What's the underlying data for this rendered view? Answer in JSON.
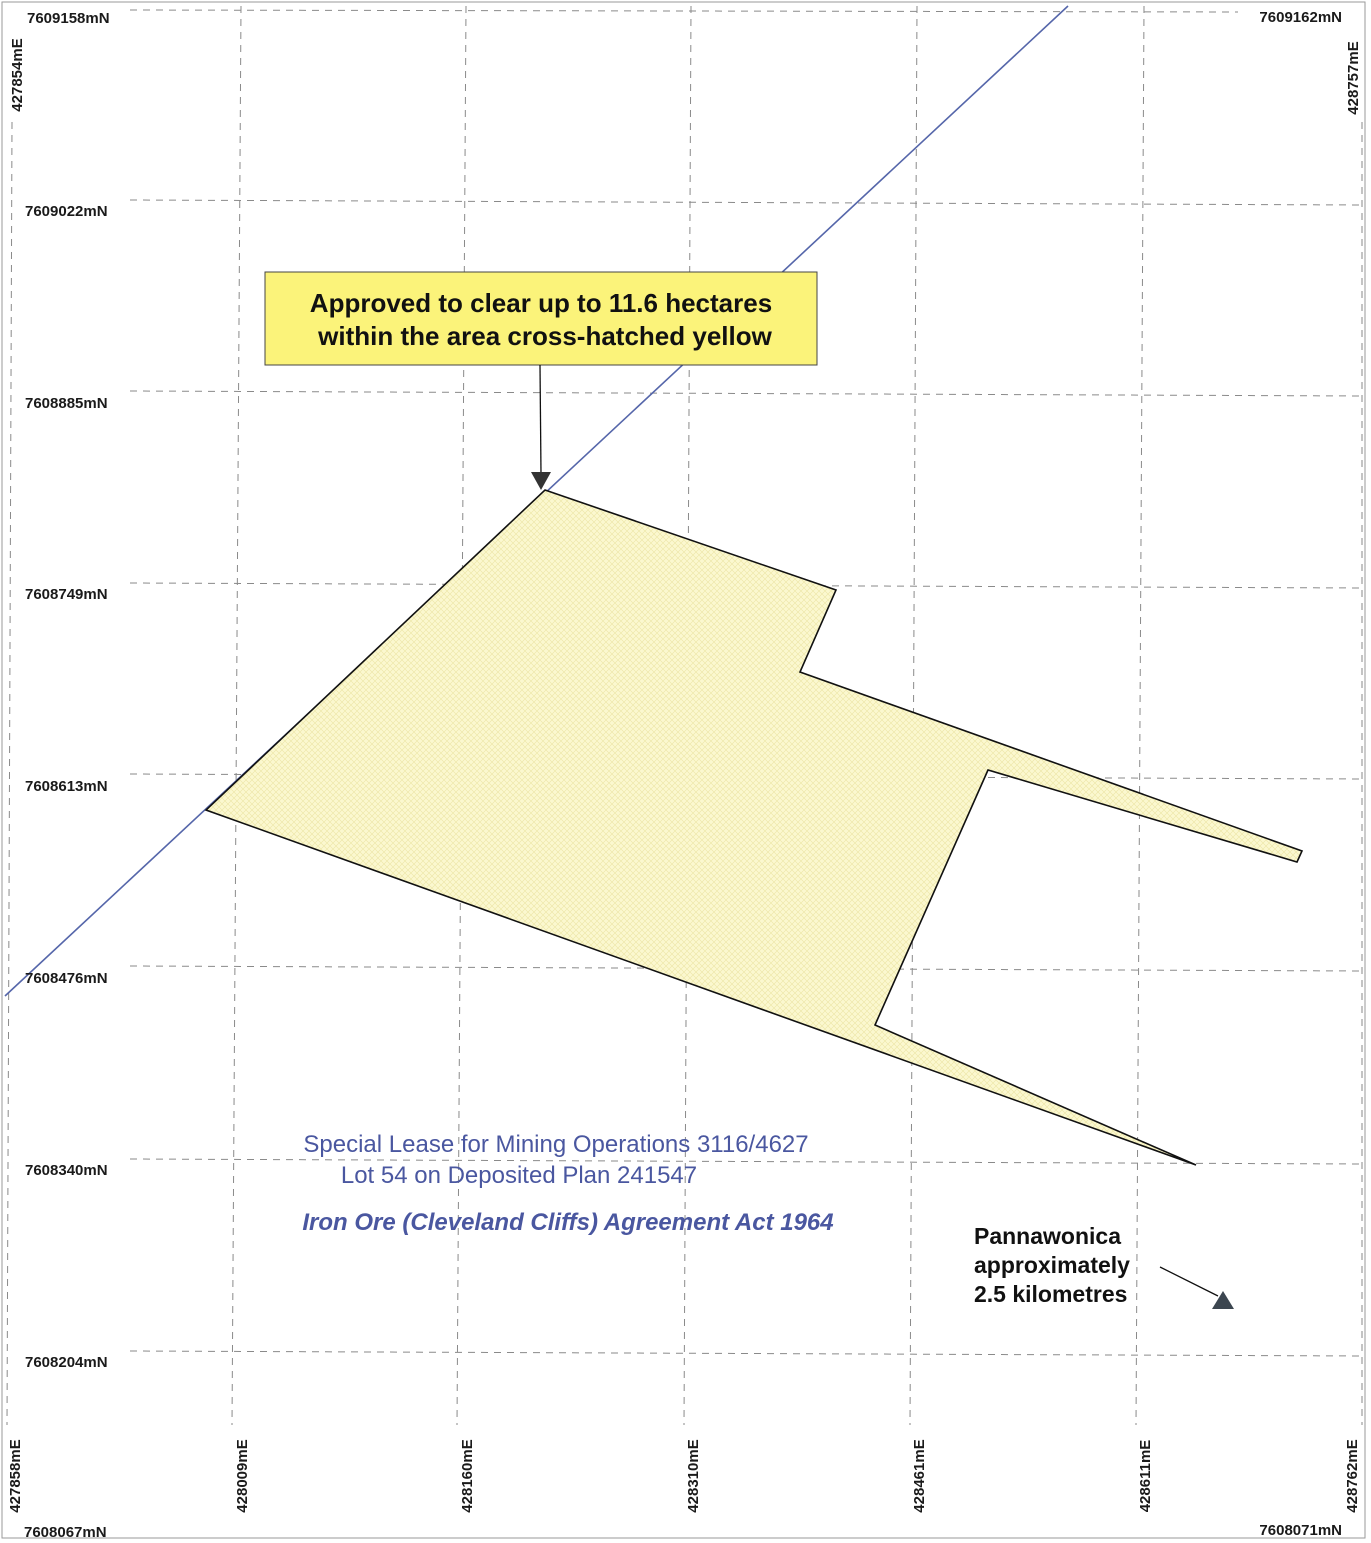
{
  "map": {
    "colors": {
      "grid": "#8a8a8a",
      "boundary": "#5566aa",
      "clearing_fill": "#fbf8cf",
      "clearing_outline": "#111111",
      "callout_fill": "#fbf37a",
      "lease_text": "#4a57a0"
    },
    "callout": {
      "lines": [
        "Approved to clear up to 11.6 hectares",
        "within the area cross-hatched yellow"
      ]
    },
    "lease": {
      "line1": "Special Lease for Mining Operations 3116/4627",
      "line2": "Lot 54 on Deposited Plan 241547",
      "act": "Iron Ore (Cleveland Cliffs) Agreement Act 1964"
    },
    "pannawonica": {
      "lines": [
        "Pannawonica",
        "approximately",
        "2.5 kilometres"
      ],
      "marker_icon": "triangle-marker-icon"
    },
    "corners": {
      "top_left_n": "7609158mN",
      "top_right_n": "7609162mN",
      "bottom_left_n": "7608067mN",
      "bottom_right_n": "7608071mN",
      "top_left_e": "427854mE",
      "top_right_e": "428757mE",
      "bottom_left_e": "427858mE",
      "bottom_right_e": "428762mE"
    },
    "northings": [
      "7609022mN",
      "7608885mN",
      "7608749mN",
      "7608613mN",
      "7608476mN",
      "7608340mN",
      "7608204mN"
    ],
    "eastings": [
      "428009mE",
      "428160mE",
      "428310mE",
      "428461mE",
      "428611mE"
    ]
  }
}
